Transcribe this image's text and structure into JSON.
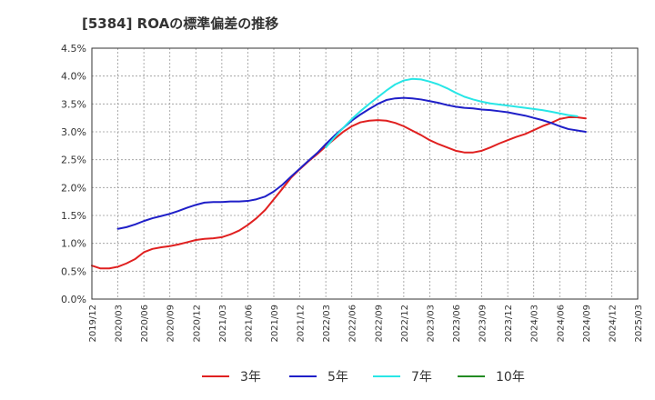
{
  "chart_data": {
    "type": "line",
    "title": "[5384]  ROAの標準偏差の推移",
    "xlabel": "",
    "ylabel": "",
    "ylim": [
      0,
      4.5
    ],
    "yticks": [
      "0.0%",
      "0.5%",
      "1.0%",
      "1.5%",
      "2.0%",
      "2.5%",
      "3.0%",
      "3.5%",
      "4.0%",
      "4.5%"
    ],
    "xticks": [
      "2019/12",
      "2020/03",
      "2020/06",
      "2020/09",
      "2020/12",
      "2021/03",
      "2021/06",
      "2021/09",
      "2021/12",
      "2022/03",
      "2022/06",
      "2022/09",
      "2022/12",
      "2023/03",
      "2023/06",
      "2023/09",
      "2023/12",
      "2024/03",
      "2024/06",
      "2024/09",
      "2024/12",
      "2025/03"
    ],
    "grid": true,
    "legend_position": "bottom",
    "series": [
      {
        "name": "3年",
        "color": "#e02020",
        "points": [
          [
            0,
            0.6
          ],
          [
            0.33,
            0.55
          ],
          [
            0.67,
            0.55
          ],
          [
            1,
            0.58
          ],
          [
            1.33,
            0.64
          ],
          [
            1.67,
            0.72
          ],
          [
            2,
            0.84
          ],
          [
            2.33,
            0.9
          ],
          [
            2.67,
            0.93
          ],
          [
            3,
            0.95
          ],
          [
            3.33,
            0.98
          ],
          [
            3.67,
            1.02
          ],
          [
            4,
            1.06
          ],
          [
            4.33,
            1.08
          ],
          [
            4.67,
            1.09
          ],
          [
            5,
            1.11
          ],
          [
            5.33,
            1.16
          ],
          [
            5.67,
            1.23
          ],
          [
            6,
            1.33
          ],
          [
            6.33,
            1.45
          ],
          [
            6.67,
            1.6
          ],
          [
            7,
            1.79
          ],
          [
            7.33,
            1.98
          ],
          [
            7.67,
            2.18
          ],
          [
            8,
            2.33
          ],
          [
            8.33,
            2.47
          ],
          [
            8.67,
            2.6
          ],
          [
            9,
            2.74
          ],
          [
            9.33,
            2.87
          ],
          [
            9.67,
            3.0
          ],
          [
            10,
            3.1
          ],
          [
            10.33,
            3.17
          ],
          [
            10.67,
            3.2
          ],
          [
            11,
            3.21
          ],
          [
            11.33,
            3.2
          ],
          [
            11.67,
            3.16
          ],
          [
            12,
            3.1
          ],
          [
            12.33,
            3.02
          ],
          [
            12.67,
            2.94
          ],
          [
            13,
            2.85
          ],
          [
            13.33,
            2.78
          ],
          [
            13.67,
            2.72
          ],
          [
            14,
            2.66
          ],
          [
            14.33,
            2.63
          ],
          [
            14.67,
            2.63
          ],
          [
            15,
            2.66
          ],
          [
            15.33,
            2.72
          ],
          [
            15.67,
            2.79
          ],
          [
            16,
            2.85
          ],
          [
            16.33,
            2.91
          ],
          [
            16.67,
            2.96
          ],
          [
            17,
            3.03
          ],
          [
            17.33,
            3.1
          ],
          [
            17.67,
            3.16
          ],
          [
            18,
            3.23
          ],
          [
            18.33,
            3.26
          ],
          [
            18.67,
            3.26
          ],
          [
            19,
            3.24
          ]
        ]
      },
      {
        "name": "5年",
        "color": "#1f1fc8",
        "points": [
          [
            1,
            1.26
          ],
          [
            1.33,
            1.29
          ],
          [
            1.67,
            1.34
          ],
          [
            2,
            1.4
          ],
          [
            2.33,
            1.45
          ],
          [
            2.67,
            1.49
          ],
          [
            3,
            1.53
          ],
          [
            3.33,
            1.58
          ],
          [
            3.67,
            1.64
          ],
          [
            4,
            1.69
          ],
          [
            4.33,
            1.73
          ],
          [
            4.67,
            1.74
          ],
          [
            5,
            1.74
          ],
          [
            5.33,
            1.75
          ],
          [
            5.67,
            1.75
          ],
          [
            6,
            1.76
          ],
          [
            6.33,
            1.79
          ],
          [
            6.67,
            1.84
          ],
          [
            7,
            1.93
          ],
          [
            7.33,
            2.05
          ],
          [
            7.67,
            2.2
          ],
          [
            8,
            2.34
          ],
          [
            8.33,
            2.48
          ],
          [
            8.67,
            2.62
          ],
          [
            9,
            2.78
          ],
          [
            9.33,
            2.93
          ],
          [
            9.67,
            3.07
          ],
          [
            10,
            3.2
          ],
          [
            10.33,
            3.31
          ],
          [
            10.67,
            3.41
          ],
          [
            11,
            3.5
          ],
          [
            11.33,
            3.57
          ],
          [
            11.67,
            3.6
          ],
          [
            12,
            3.61
          ],
          [
            12.33,
            3.6
          ],
          [
            12.67,
            3.58
          ],
          [
            13,
            3.55
          ],
          [
            13.33,
            3.52
          ],
          [
            13.67,
            3.48
          ],
          [
            14,
            3.45
          ],
          [
            14.33,
            3.43
          ],
          [
            14.67,
            3.42
          ],
          [
            15,
            3.4
          ],
          [
            15.33,
            3.39
          ],
          [
            15.67,
            3.37
          ],
          [
            16,
            3.35
          ],
          [
            16.33,
            3.32
          ],
          [
            16.67,
            3.29
          ],
          [
            17,
            3.25
          ],
          [
            17.33,
            3.21
          ],
          [
            17.67,
            3.16
          ],
          [
            18,
            3.1
          ],
          [
            18.33,
            3.05
          ],
          [
            19,
            3.0
          ]
        ]
      },
      {
        "name": "7年",
        "color": "#28e6e6",
        "points": [
          [
            9,
            2.72
          ],
          [
            9.33,
            2.9
          ],
          [
            9.67,
            3.07
          ],
          [
            10,
            3.23
          ],
          [
            10.33,
            3.37
          ],
          [
            10.67,
            3.5
          ],
          [
            11,
            3.62
          ],
          [
            11.33,
            3.74
          ],
          [
            11.67,
            3.85
          ],
          [
            12,
            3.92
          ],
          [
            12.33,
            3.95
          ],
          [
            12.67,
            3.94
          ],
          [
            13,
            3.9
          ],
          [
            13.33,
            3.85
          ],
          [
            13.67,
            3.78
          ],
          [
            14,
            3.7
          ],
          [
            14.33,
            3.63
          ],
          [
            14.67,
            3.58
          ],
          [
            15,
            3.54
          ],
          [
            15.33,
            3.51
          ],
          [
            15.67,
            3.49
          ],
          [
            16,
            3.47
          ],
          [
            16.33,
            3.45
          ],
          [
            16.67,
            3.43
          ],
          [
            17,
            3.41
          ],
          [
            17.33,
            3.39
          ],
          [
            17.67,
            3.36
          ],
          [
            18,
            3.33
          ],
          [
            18.33,
            3.3
          ],
          [
            18.67,
            3.28
          ]
        ]
      },
      {
        "name": "10年",
        "color": "#228b22",
        "points": []
      }
    ]
  }
}
